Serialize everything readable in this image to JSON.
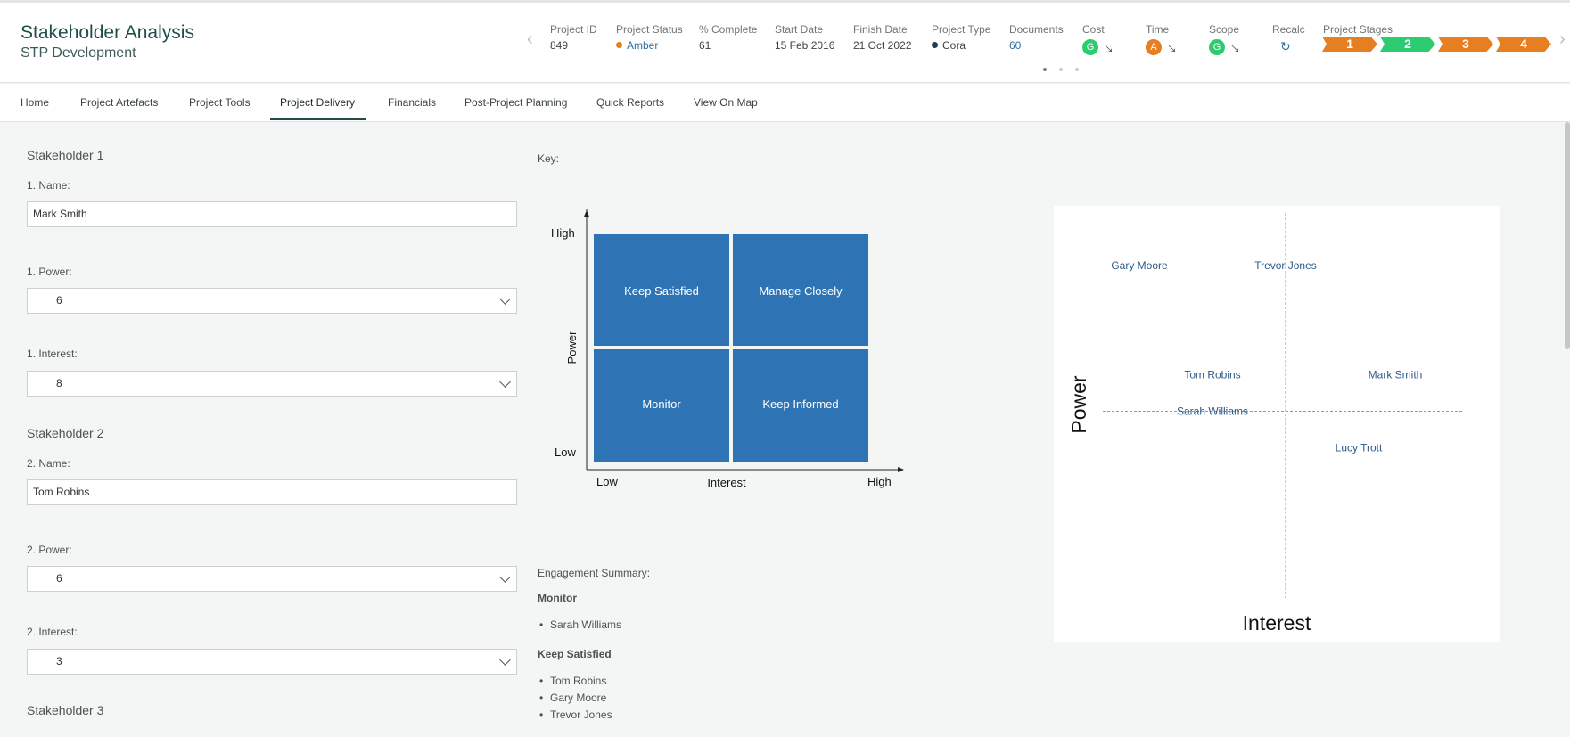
{
  "header": {
    "title": "Stakeholder Analysis",
    "subtitle": "STP Development",
    "prev_icon": "chevron-left-icon",
    "next_icon": "chevron-right-icon",
    "meta": [
      {
        "label": "Project ID",
        "value": "849"
      },
      {
        "label": "Project Status",
        "value": "Amber",
        "dot_color": "#e07f21"
      },
      {
        "label": "% Complete",
        "value": "61"
      },
      {
        "label": "Start Date",
        "value": "15 Feb 2016"
      },
      {
        "label": "Finish Date",
        "value": "21 Oct 2022"
      },
      {
        "label": "Project Type",
        "value": "Cora",
        "dot_color": "#1f3c5a"
      },
      {
        "label": "Documents",
        "value": "60"
      },
      {
        "label": "Cost",
        "rag": "G",
        "rag_color": "#2ecc71",
        "trend_icon": "trend-down-icon"
      },
      {
        "label": "Time",
        "rag": "A",
        "rag_color": "#e67e22",
        "trend_icon": "trend-down-icon"
      },
      {
        "label": "Scope",
        "rag": "G",
        "rag_color": "#2ecc71",
        "trend_icon": "trend-down-icon"
      },
      {
        "label": "Recalc",
        "icon": "refresh-icon"
      },
      {
        "label": "Project Stages"
      }
    ],
    "stages": [
      {
        "label": "1",
        "color": "#e67e22"
      },
      {
        "label": "2",
        "color": "#2ecc71"
      },
      {
        "label": "3",
        "color": "#e67e22"
      },
      {
        "label": "4",
        "color": "#e67e22"
      }
    ],
    "pager_active": 1
  },
  "tabs": [
    {
      "label": "Home"
    },
    {
      "label": "Project Artefacts"
    },
    {
      "label": "Project Tools"
    },
    {
      "label": "Project Delivery",
      "active": true
    },
    {
      "label": "Financials"
    },
    {
      "label": "Post-Project Planning"
    },
    {
      "label": "Quick Reports"
    },
    {
      "label": "View On Map"
    }
  ],
  "form": {
    "s1": {
      "heading": "Stakeholder 1",
      "name_label": "1. Name:",
      "name": "Mark Smith",
      "power_label": "1. Power:",
      "power": "6",
      "interest_label": "1. Interest:",
      "interest": "8"
    },
    "s2": {
      "heading": "Stakeholder 2",
      "name_label": "2. Name:",
      "name": "Tom Robins",
      "power_label": "2. Power:",
      "power": "6",
      "interest_label": "2. Interest:",
      "interest": "3"
    },
    "s3": {
      "heading": "Stakeholder 3"
    }
  },
  "key": {
    "label": "Key:",
    "y_high": "High",
    "y_low": "Low",
    "y_axis": "Power",
    "x_low": "Low",
    "x_mid": "Interest",
    "x_high": "High",
    "quadrants": {
      "top_left": "Keep Satisfied",
      "top_right": "Manage Closely",
      "bottom_left": "Monitor",
      "bottom_right": "Keep Informed"
    },
    "quadrant_color": "#2e74b5"
  },
  "engagement": {
    "label": "Engagement Summary:",
    "groups": [
      {
        "heading": "Monitor",
        "items": [
          "Sarah Williams"
        ]
      },
      {
        "heading": "Keep Satisfied",
        "items": [
          "Tom Robins",
          "Gary Moore",
          "Trevor Jones"
        ]
      }
    ]
  },
  "chart_data": {
    "type": "scatter",
    "xlabel": "Interest",
    "ylabel": "Power",
    "xlim": [
      0,
      10
    ],
    "ylim": [
      0,
      10
    ],
    "midline_x": 5,
    "midline_y": 5,
    "label_color": "#2e5a88",
    "points": [
      {
        "label": "Gary Moore",
        "x": 1,
        "y": 9
      },
      {
        "label": "Trevor Jones",
        "x": 5,
        "y": 9
      },
      {
        "label": "Tom Robins",
        "x": 3,
        "y": 6
      },
      {
        "label": "Mark Smith",
        "x": 8,
        "y": 6
      },
      {
        "label": "Sarah Williams",
        "x": 3,
        "y": 5
      },
      {
        "label": "Lucy Trott",
        "x": 7,
        "y": 4
      }
    ]
  }
}
